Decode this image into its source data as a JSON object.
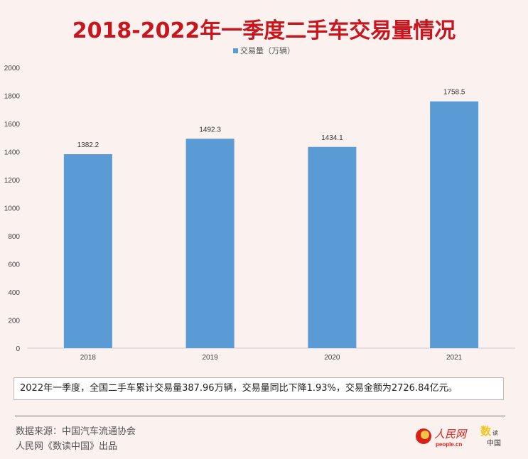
{
  "chart_data": {
    "type": "bar",
    "title": "2018-2022年一季度二手车交易量情况",
    "legend": "交易量（万辆）",
    "legend_position": "top",
    "categories": [
      "2018",
      "2019",
      "2020",
      "2021"
    ],
    "values": [
      1382.2,
      1492.3,
      1434.1,
      1758.5
    ],
    "value_labels": [
      "1382.2",
      "1492.3",
      "1434.1",
      "1758.5"
    ],
    "ylim": [
      0,
      2000
    ],
    "yticks": [
      "0",
      "200",
      "400",
      "600",
      "800",
      "1000",
      "1200",
      "1400",
      "1600",
      "1800",
      "2000"
    ],
    "xlabel": "",
    "ylabel": "",
    "bar_color": "#5b9bd5"
  },
  "note": "2022年一季度，全国二手车累计交易量387.96万辆，交易量同比下降1.93%，交易金额为2726.84亿元。",
  "source": "数据来源：中国汽车流通协会",
  "producer": "人民网《数读中国》出品",
  "logos": {
    "people": "人民网 people.cn",
    "shudu": "数读中国"
  }
}
